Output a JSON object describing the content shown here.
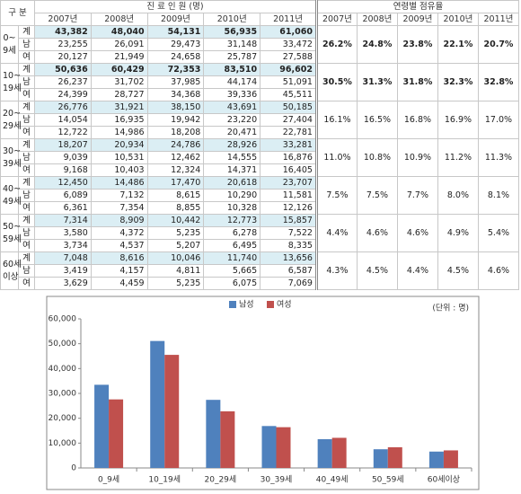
{
  "table": {
    "header": {
      "category": "구 분",
      "count": "진 료 인 원 (명)",
      "share": "연령별 점유율"
    },
    "years": [
      "2007년",
      "2008년",
      "2009년",
      "2010년",
      "2011년"
    ],
    "groups": [
      {
        "label": [
          "0~",
          "9세"
        ],
        "rows": [
          {
            "sex": "계",
            "values": [
              "43,382",
              "48,040",
              "54,131",
              "56,935",
              "61,060"
            ]
          },
          {
            "sex": "남",
            "values": [
              "23,255",
              "26,091",
              "29,473",
              "31,148",
              "33,472"
            ]
          },
          {
            "sex": "여",
            "values": [
              "20,127",
              "21,949",
              "24,658",
              "25,787",
              "27,588"
            ]
          }
        ],
        "shares": [
          "26.2%",
          "24.8%",
          "23.8%",
          "22.1%",
          "20.7%"
        ]
      },
      {
        "label": [
          "10~",
          "19세"
        ],
        "rows": [
          {
            "sex": "계",
            "values": [
              "50,636",
              "60,429",
              "72,353",
              "83,510",
              "96,602"
            ]
          },
          {
            "sex": "남",
            "values": [
              "26,237",
              "31,702",
              "37,985",
              "44,174",
              "51,091"
            ]
          },
          {
            "sex": "여",
            "values": [
              "24,399",
              "28,727",
              "34,368",
              "39,336",
              "45,511"
            ]
          }
        ],
        "shares": [
          "30.5%",
          "31.3%",
          "31.8%",
          "32.3%",
          "32.8%"
        ]
      },
      {
        "label": [
          "20~",
          "29세"
        ],
        "rows": [
          {
            "sex": "계",
            "values": [
              "26,776",
              "31,921",
              "38,150",
              "43,691",
              "50,185"
            ]
          },
          {
            "sex": "남",
            "values": [
              "14,054",
              "16,935",
              "19,942",
              "23,220",
              "27,404"
            ]
          },
          {
            "sex": "여",
            "values": [
              "12,722",
              "14,986",
              "18,208",
              "20,471",
              "22,781"
            ]
          }
        ],
        "shares": [
          "16.1%",
          "16.5%",
          "16.8%",
          "16.9%",
          "17.0%"
        ]
      },
      {
        "label": [
          "30~",
          "39세"
        ],
        "rows": [
          {
            "sex": "계",
            "values": [
              "18,207",
              "20,934",
              "24,786",
              "28,926",
              "33,281"
            ]
          },
          {
            "sex": "남",
            "values": [
              "9,039",
              "10,531",
              "12,462",
              "14,555",
              "16,876"
            ]
          },
          {
            "sex": "여",
            "values": [
              "9,168",
              "10,403",
              "12,324",
              "14,371",
              "16,405"
            ]
          }
        ],
        "shares": [
          "11.0%",
          "10.8%",
          "10.9%",
          "11.2%",
          "11.3%"
        ]
      },
      {
        "label": [
          "40~",
          "49세"
        ],
        "rows": [
          {
            "sex": "계",
            "values": [
              "12,450",
              "14,486",
              "17,470",
              "20,618",
              "23,707"
            ]
          },
          {
            "sex": "남",
            "values": [
              "6,089",
              "7,132",
              "8,615",
              "10,290",
              "11,581"
            ]
          },
          {
            "sex": "여",
            "values": [
              "6,361",
              "7,354",
              "8,855",
              "10,328",
              "12,126"
            ]
          }
        ],
        "shares": [
          "7.5%",
          "7.5%",
          "7.7%",
          "8.0%",
          "8.1%"
        ]
      },
      {
        "label": [
          "50~",
          "59세"
        ],
        "rows": [
          {
            "sex": "계",
            "values": [
              "7,314",
              "8,909",
              "10,442",
              "12,773",
              "15,857"
            ]
          },
          {
            "sex": "남",
            "values": [
              "3,580",
              "4,372",
              "5,235",
              "6,278",
              "7,522"
            ]
          },
          {
            "sex": "여",
            "values": [
              "3,734",
              "4,537",
              "5,207",
              "6,495",
              "8,335"
            ]
          }
        ],
        "shares": [
          "4.4%",
          "4.6%",
          "4.6%",
          "4.9%",
          "5.4%"
        ]
      },
      {
        "label": [
          "60세",
          "이상"
        ],
        "rows": [
          {
            "sex": "계",
            "values": [
              "7,048",
              "8,616",
              "10,046",
              "11,740",
              "13,656"
            ]
          },
          {
            "sex": "남",
            "values": [
              "3,419",
              "4,157",
              "4,811",
              "5,665",
              "6,587"
            ]
          },
          {
            "sex": "여",
            "values": [
              "3,629",
              "4,459",
              "5,235",
              "6,075",
              "7,069"
            ]
          }
        ],
        "shares": [
          "4.3%",
          "4.5%",
          "4.4%",
          "4.5%",
          "4.6%"
        ]
      }
    ]
  },
  "chart_data": {
    "type": "bar",
    "unit": "(단위 : 명)",
    "categories": [
      "0_9세",
      "10_19세",
      "20_29세",
      "30_39세",
      "40_49세",
      "50_59세",
      "60세이상"
    ],
    "series": [
      {
        "name": "남성",
        "color": "#4f81bd",
        "values": [
          33472,
          51091,
          27404,
          16876,
          11581,
          7522,
          6587
        ]
      },
      {
        "name": "여성",
        "color": "#c0504d",
        "values": [
          27588,
          45511,
          22781,
          16405,
          12126,
          8335,
          7069
        ]
      }
    ],
    "ylim": [
      0,
      60000
    ],
    "yticks": [
      0,
      {
        "value": 10000,
        "label": "10,000"
      },
      {
        "value": 20000,
        "label": "20,000"
      },
      {
        "value": 30000,
        "label": "30,000"
      },
      {
        "value": 40000,
        "label": "40,000"
      },
      {
        "value": 50000,
        "label": "50,000"
      },
      {
        "value": 60000,
        "label": "60,000"
      }
    ],
    "grid": false,
    "legend": "top"
  }
}
